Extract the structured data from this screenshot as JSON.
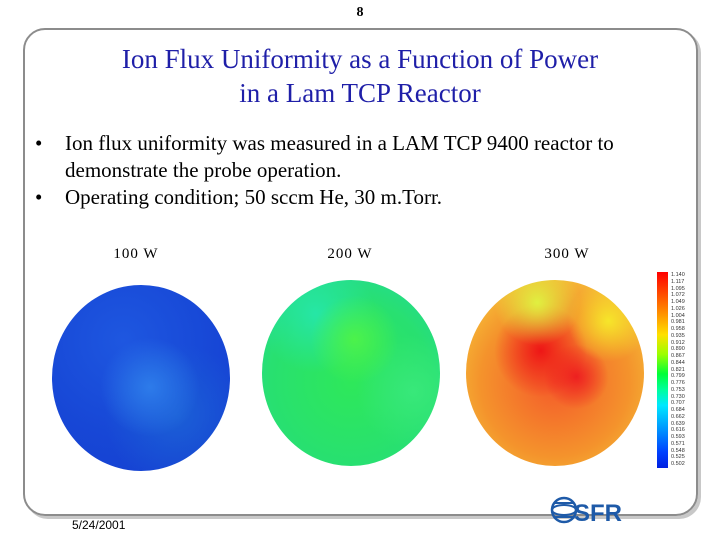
{
  "page_number": "8",
  "title_line1": "Ion Flux Uniformity as a Function of Power",
  "title_line2": "in a Lam TCP Reactor",
  "bullets": [
    "Ion flux uniformity was measured in a LAM TCP 9400 reactor to demonstrate the probe operation.",
    "Operating condition; 50 sccm He, 30 m.Torr."
  ],
  "bullet_symbol": "•",
  "panels": [
    {
      "label": "100 W"
    },
    {
      "label": "200 W"
    },
    {
      "label": "300 W"
    }
  ],
  "colorbar_ticks": [
    "1.140",
    "1.117",
    "1.095",
    "1.072",
    "1.049",
    "1.026",
    "1.004",
    "0.981",
    "0.958",
    "0.935",
    "0.912",
    "0.890",
    "0.867",
    "0.844",
    "0.821",
    "0.799",
    "0.776",
    "0.753",
    "0.730",
    "0.707",
    "0.684",
    "0.662",
    "0.639",
    "0.616",
    "0.593",
    "0.571",
    "0.548",
    "0.525",
    "0.502"
  ],
  "date": "5/24/2001",
  "logo_text": "SFR",
  "colors": {
    "title": "#1f1fa8",
    "logo": "#1e5aa8"
  }
}
